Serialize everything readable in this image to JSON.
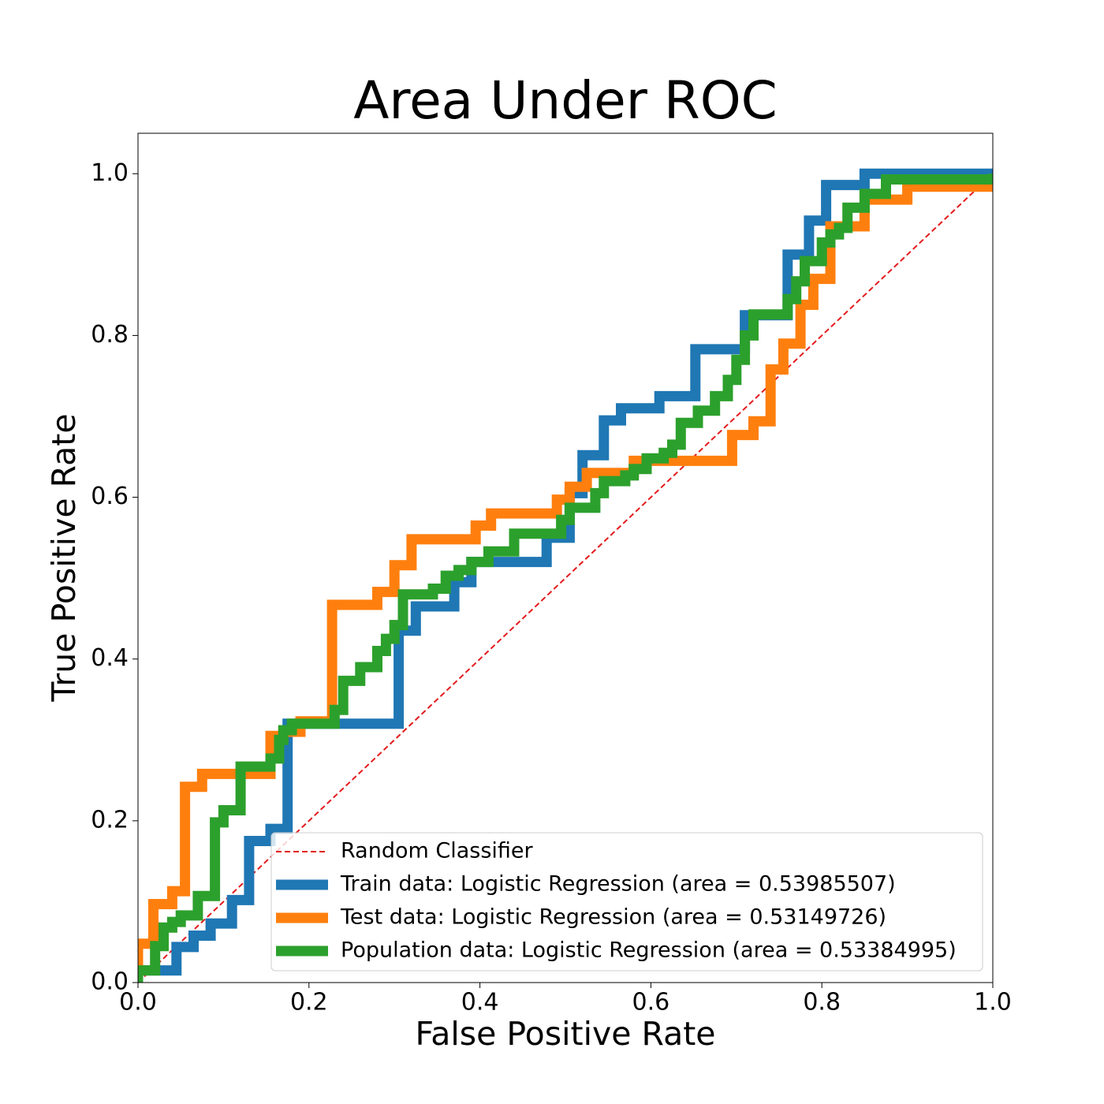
{
  "chart_data": {
    "type": "line",
    "title": "Area Under ROC",
    "xlabel": "False Positive  Rate",
    "ylabel": "True Positive  Rate",
    "xlim": [
      0,
      1
    ],
    "ylim": [
      0,
      1.05
    ],
    "xticks": [
      {
        "value": 0,
        "label": "0.0"
      },
      {
        "value": 0.2,
        "label": "0.2"
      },
      {
        "value": 0.4,
        "label": "0.4"
      },
      {
        "value": 0.6,
        "label": "0.6"
      },
      {
        "value": 0.8,
        "label": "0.8"
      },
      {
        "value": 1,
        "label": "1.0"
      }
    ],
    "yticks": [
      {
        "value": 0,
        "label": "0.0"
      },
      {
        "value": 0.2,
        "label": "0.2"
      },
      {
        "value": 0.4,
        "label": "0.4"
      },
      {
        "value": 0.6,
        "label": "0.6"
      },
      {
        "value": 0.8,
        "label": "0.8"
      },
      {
        "value": 1,
        "label": "1.0"
      }
    ],
    "grid": false,
    "legend": "lower right",
    "series": [
      {
        "name": "Random Classifier",
        "color": "#e41a1c",
        "linestyle": "dashed",
        "x": [
          0,
          1
        ],
        "values": [
          0,
          1
        ]
      },
      {
        "name": "Train data: Logistic Regression (area = 0.53985507)",
        "color": "#1f77b4",
        "linestyle": "solid",
        "x": [
          0,
          0,
          0.045,
          0.045,
          0.065,
          0.065,
          0.085,
          0.085,
          0.11,
          0.11,
          0.13,
          0.13,
          0.155,
          0.155,
          0.175,
          0.175,
          0.305,
          0.305,
          0.325,
          0.325,
          0.37,
          0.37,
          0.39,
          0.39,
          0.478,
          0.478,
          0.505,
          0.505,
          0.52,
          0.52,
          0.545,
          0.545,
          0.565,
          0.565,
          0.61,
          0.61,
          0.652,
          0.652,
          0.71,
          0.71,
          0.76,
          0.76,
          0.785,
          0.785,
          0.805,
          0.805,
          0.85,
          0.85,
          1
        ],
        "values": [
          0,
          0.015,
          0.015,
          0.044,
          0.044,
          0.058,
          0.058,
          0.073,
          0.073,
          0.102,
          0.102,
          0.175,
          0.175,
          0.19,
          0.19,
          0.32,
          0.32,
          0.435,
          0.435,
          0.465,
          0.465,
          0.495,
          0.495,
          0.52,
          0.52,
          0.55,
          0.55,
          0.605,
          0.605,
          0.652,
          0.652,
          0.695,
          0.695,
          0.71,
          0.71,
          0.725,
          0.725,
          0.783,
          0.783,
          0.825,
          0.825,
          0.9,
          0.9,
          0.942,
          0.942,
          0.986,
          0.986,
          1,
          1
        ]
      },
      {
        "name": "Test data: Logistic Regression (area = 0.53149726)",
        "color": "#ff7f0e",
        "linestyle": "solid",
        "x": [
          0,
          0,
          0.018,
          0.018,
          0.04,
          0.04,
          0.055,
          0.055,
          0.075,
          0.075,
          0.155,
          0.155,
          0.17,
          0.17,
          0.19,
          0.19,
          0.227,
          0.227,
          0.28,
          0.28,
          0.3,
          0.3,
          0.32,
          0.32,
          0.395,
          0.395,
          0.413,
          0.413,
          0.49,
          0.49,
          0.505,
          0.505,
          0.525,
          0.525,
          0.58,
          0.58,
          0.695,
          0.695,
          0.72,
          0.72,
          0.74,
          0.74,
          0.755,
          0.755,
          0.775,
          0.775,
          0.79,
          0.79,
          0.81,
          0.81,
          0.85,
          0.85,
          0.9,
          0.9,
          1
        ],
        "values": [
          0,
          0.048,
          0.048,
          0.097,
          0.097,
          0.113,
          0.113,
          0.242,
          0.242,
          0.258,
          0.258,
          0.305,
          0.305,
          0.31,
          0.31,
          0.323,
          0.323,
          0.467,
          0.467,
          0.483,
          0.483,
          0.516,
          0.516,
          0.548,
          0.548,
          0.565,
          0.565,
          0.58,
          0.58,
          0.597,
          0.597,
          0.613,
          0.613,
          0.63,
          0.63,
          0.645,
          0.645,
          0.677,
          0.677,
          0.694,
          0.694,
          0.758,
          0.758,
          0.79,
          0.79,
          0.838,
          0.838,
          0.87,
          0.87,
          0.935,
          0.935,
          0.968,
          0.968,
          0.984,
          0.984
        ]
      },
      {
        "name": "Population data: Logistic Regression (area = 0.53384995)",
        "color": "#2ca02c",
        "linestyle": "solid",
        "x": [
          0,
          0,
          0.02,
          0.02,
          0.03,
          0.03,
          0.04,
          0.04,
          0.05,
          0.05,
          0.07,
          0.07,
          0.09,
          0.09,
          0.1,
          0.1,
          0.12,
          0.12,
          0.155,
          0.155,
          0.165,
          0.165,
          0.17,
          0.17,
          0.18,
          0.18,
          0.23,
          0.23,
          0.24,
          0.24,
          0.26,
          0.26,
          0.28,
          0.28,
          0.29,
          0.29,
          0.3,
          0.3,
          0.31,
          0.31,
          0.345,
          0.345,
          0.36,
          0.36,
          0.375,
          0.375,
          0.39,
          0.39,
          0.41,
          0.41,
          0.44,
          0.44,
          0.495,
          0.495,
          0.505,
          0.505,
          0.535,
          0.535,
          0.545,
          0.545,
          0.57,
          0.57,
          0.58,
          0.58,
          0.595,
          0.595,
          0.615,
          0.615,
          0.625,
          0.625,
          0.635,
          0.635,
          0.655,
          0.655,
          0.675,
          0.675,
          0.69,
          0.69,
          0.7,
          0.7,
          0.71,
          0.71,
          0.72,
          0.72,
          0.76,
          0.76,
          0.77,
          0.77,
          0.78,
          0.78,
          0.8,
          0.8,
          0.81,
          0.81,
          0.82,
          0.82,
          0.83,
          0.83,
          0.85,
          0.85,
          0.875,
          0.875,
          1,
          1
        ],
        "values": [
          0,
          0.015,
          0.015,
          0.045,
          0.045,
          0.068,
          0.068,
          0.075,
          0.075,
          0.083,
          0.083,
          0.107,
          0.107,
          0.198,
          0.198,
          0.213,
          0.213,
          0.267,
          0.267,
          0.277,
          0.277,
          0.3,
          0.3,
          0.312,
          0.312,
          0.32,
          0.32,
          0.337,
          0.337,
          0.373,
          0.373,
          0.39,
          0.39,
          0.41,
          0.41,
          0.425,
          0.425,
          0.442,
          0.442,
          0.48,
          0.48,
          0.487,
          0.487,
          0.503,
          0.503,
          0.51,
          0.51,
          0.52,
          0.52,
          0.533,
          0.533,
          0.555,
          0.555,
          0.572,
          0.572,
          0.587,
          0.587,
          0.605,
          0.605,
          0.62,
          0.62,
          0.627,
          0.627,
          0.635,
          0.635,
          0.648,
          0.648,
          0.655,
          0.655,
          0.665,
          0.665,
          0.692,
          0.692,
          0.707,
          0.707,
          0.725,
          0.725,
          0.745,
          0.745,
          0.77,
          0.77,
          0.8,
          0.8,
          0.826,
          0.826,
          0.845,
          0.845,
          0.867,
          0.867,
          0.892,
          0.892,
          0.915,
          0.915,
          0.925,
          0.925,
          0.933,
          0.933,
          0.958,
          0.958,
          0.975,
          0.975,
          0.993,
          0.993,
          1
        ]
      }
    ]
  }
}
